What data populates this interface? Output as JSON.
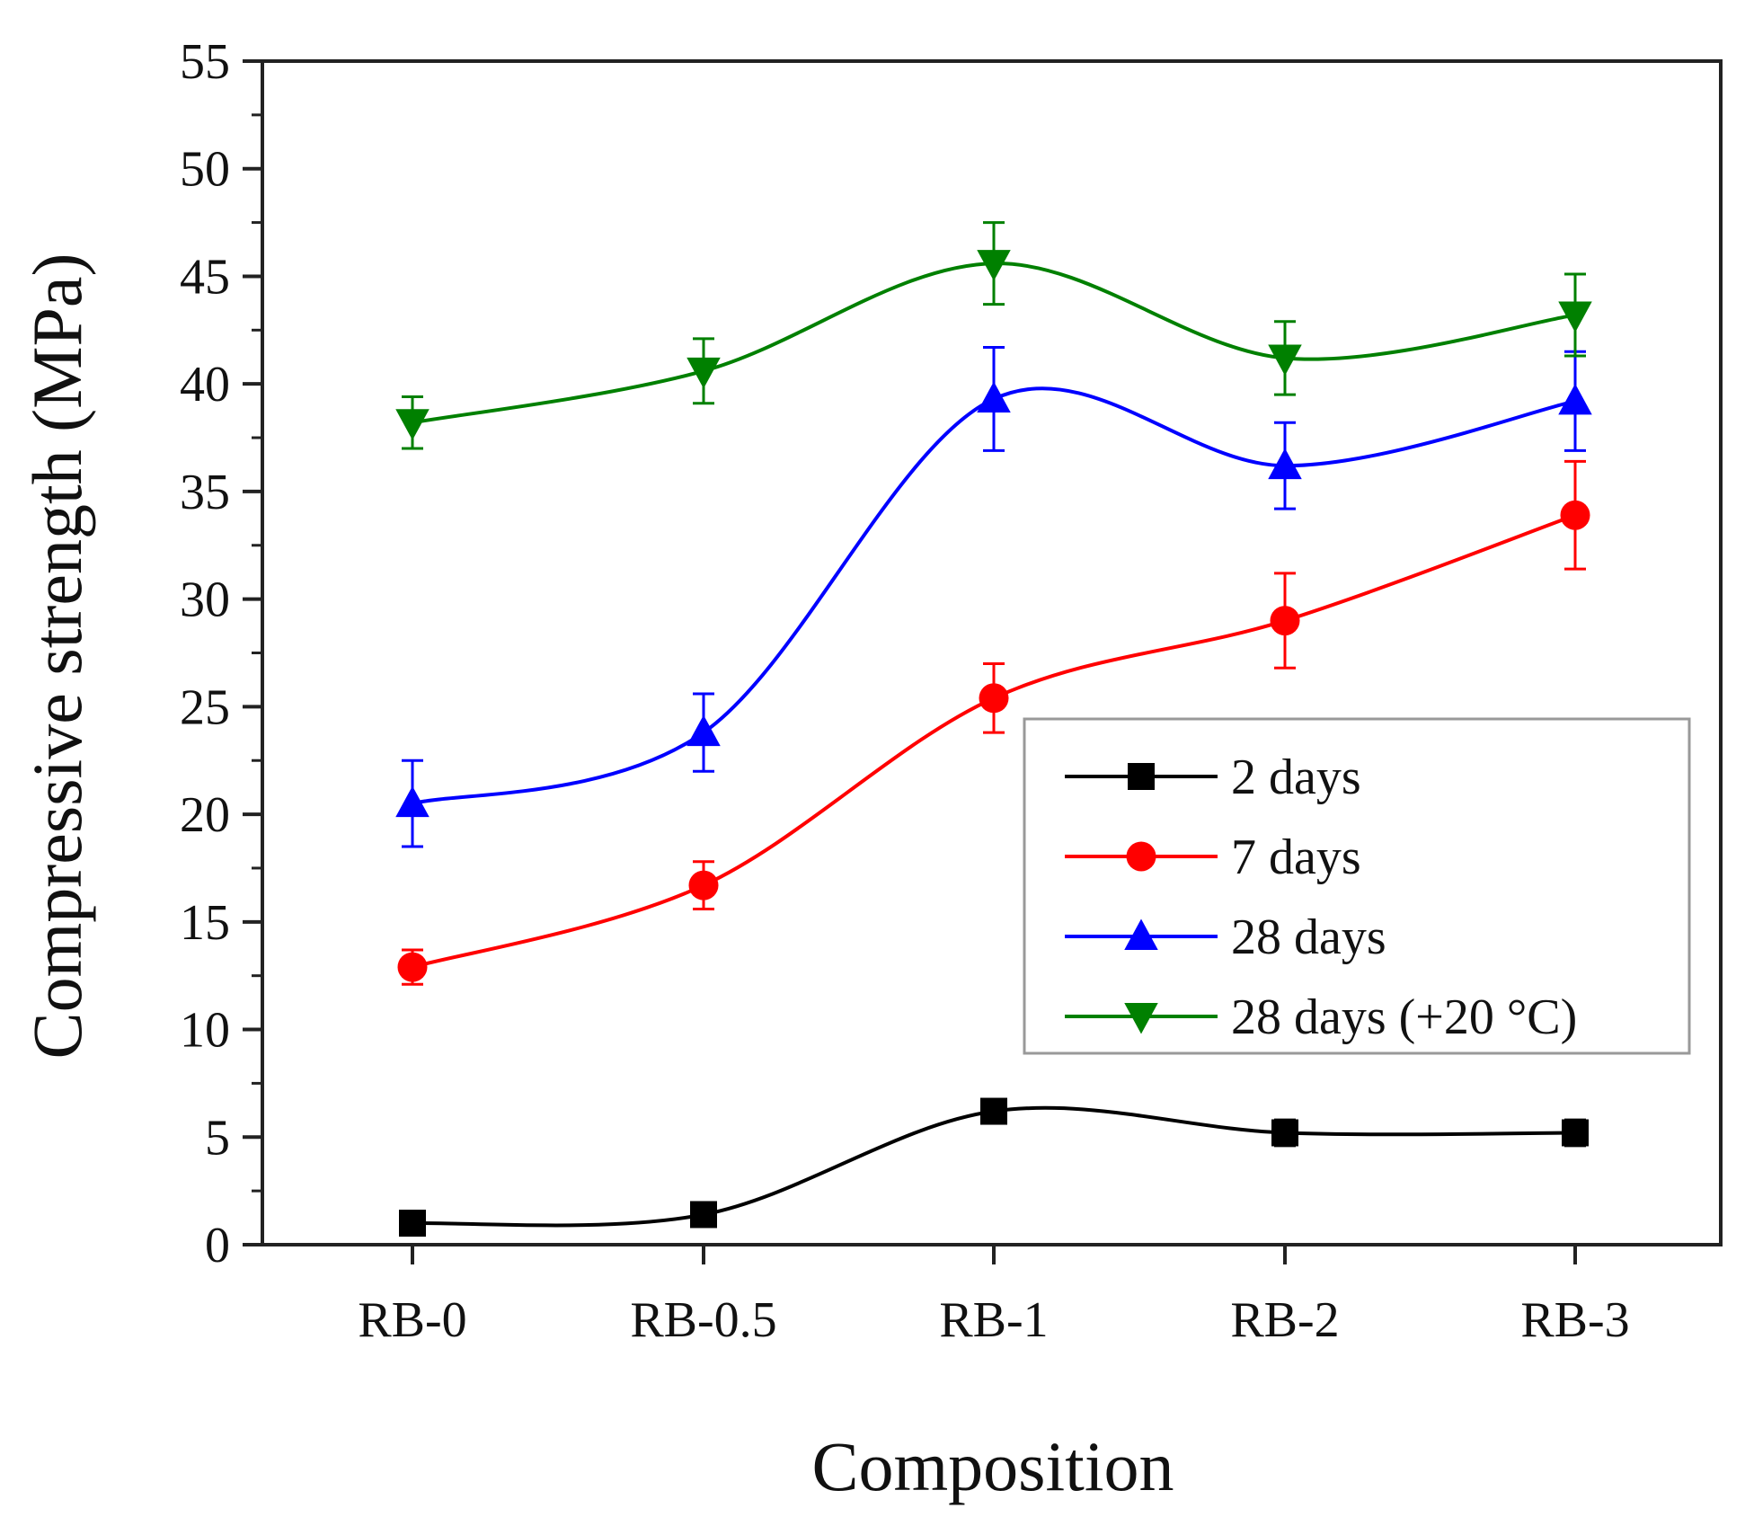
{
  "chart_data": {
    "type": "line",
    "title": "",
    "xlabel": "Composition",
    "ylabel": "Compressive strength (MPa)",
    "categories": [
      "RB-0",
      "RB-0.5",
      "RB-1",
      "RB-2",
      "RB-3"
    ],
    "ylim": [
      0,
      55
    ],
    "yticks": [
      0,
      5,
      10,
      15,
      20,
      25,
      30,
      35,
      40,
      45,
      50,
      55
    ],
    "ytick_labels": [
      "0",
      "5",
      "10",
      "15",
      "20",
      "25",
      "30",
      "35",
      "40",
      "45",
      "50",
      "55"
    ],
    "grid": false,
    "legend_position": "center-right",
    "series": [
      {
        "name": "2 days",
        "color": "#000000",
        "marker": "square",
        "values": [
          1.0,
          1.4,
          6.2,
          5.2,
          5.2
        ],
        "errors": [
          0.3,
          0.3,
          0.5,
          0.6,
          0.6
        ]
      },
      {
        "name": "7 days",
        "color": "#ff0000",
        "marker": "circle",
        "values": [
          12.9,
          16.7,
          25.4,
          29.0,
          33.9
        ],
        "errors": [
          0.8,
          1.1,
          1.6,
          2.2,
          2.5
        ]
      },
      {
        "name": "28 days",
        "color": "#0000ff",
        "marker": "triangle-up",
        "values": [
          20.5,
          23.8,
          39.3,
          36.2,
          39.2
        ],
        "errors": [
          2.0,
          1.8,
          2.4,
          2.0,
          2.3
        ]
      },
      {
        "name": "28 days (+20 °C)",
        "color": "#008000",
        "marker": "triangle-down",
        "values": [
          38.2,
          40.6,
          45.6,
          41.2,
          43.2
        ],
        "errors": [
          1.2,
          1.5,
          1.9,
          1.7,
          1.9
        ]
      }
    ]
  }
}
